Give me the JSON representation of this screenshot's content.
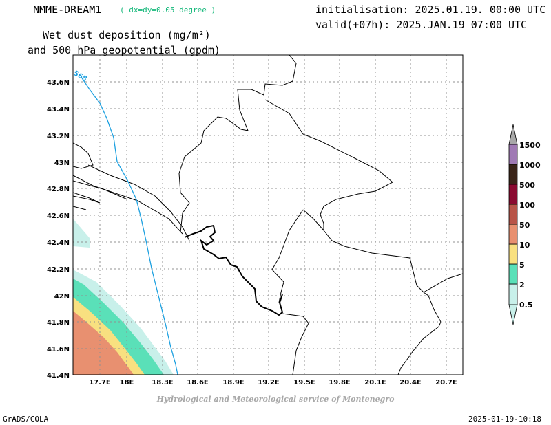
{
  "header": {
    "model_name": "NMME-DREAM1",
    "resolution": "( dx=dy=0.05 degree )",
    "title_line1": "Wet dust deposition (mg/m²)",
    "title_line2": "and 500 hPa geopotential (gpdm)",
    "init": "initialisation: 2025.01.19. 00:00 UTC",
    "valid": "valid(+07h): 2025.JAN.19 07:00 UTC"
  },
  "map": {
    "lon_labels": [
      "17.7E",
      "18E",
      "18.3E",
      "18.6E",
      "18.9E",
      "19.2E",
      "19.5E",
      "19.8E",
      "20.1E",
      "20.4E",
      "20.7E"
    ],
    "lat_labels": [
      "43.6N",
      "43.4N",
      "43.2N",
      "43N",
      "42.8N",
      "42.6N",
      "42.4N",
      "42.2N",
      "42N",
      "41.8N",
      "41.6N",
      "41.4N"
    ],
    "contour_label": "568"
  },
  "colorbar": {
    "labels": [
      "0.5",
      "2",
      "5",
      "10",
      "50",
      "100",
      "500",
      "1000",
      "1500"
    ],
    "colors": [
      "#c8f0ea",
      "#5ae0b8",
      "#f8e080",
      "#e89070",
      "#b85448",
      "#8a0a30",
      "#3a2418",
      "#a07ab4",
      "#a8a8a8"
    ]
  },
  "fill_colors": {
    "c0_5": "#c8f0ea",
    "c2": "#5ae0b8",
    "c5": "#f8e080",
    "c10": "#e89070",
    "contour": "#1ca0e0"
  },
  "footer": {
    "credit": "Hydrological and Meteorological service of Montenegro",
    "left": "GrADS/COLA",
    "right": "2025-01-19-10:18"
  }
}
